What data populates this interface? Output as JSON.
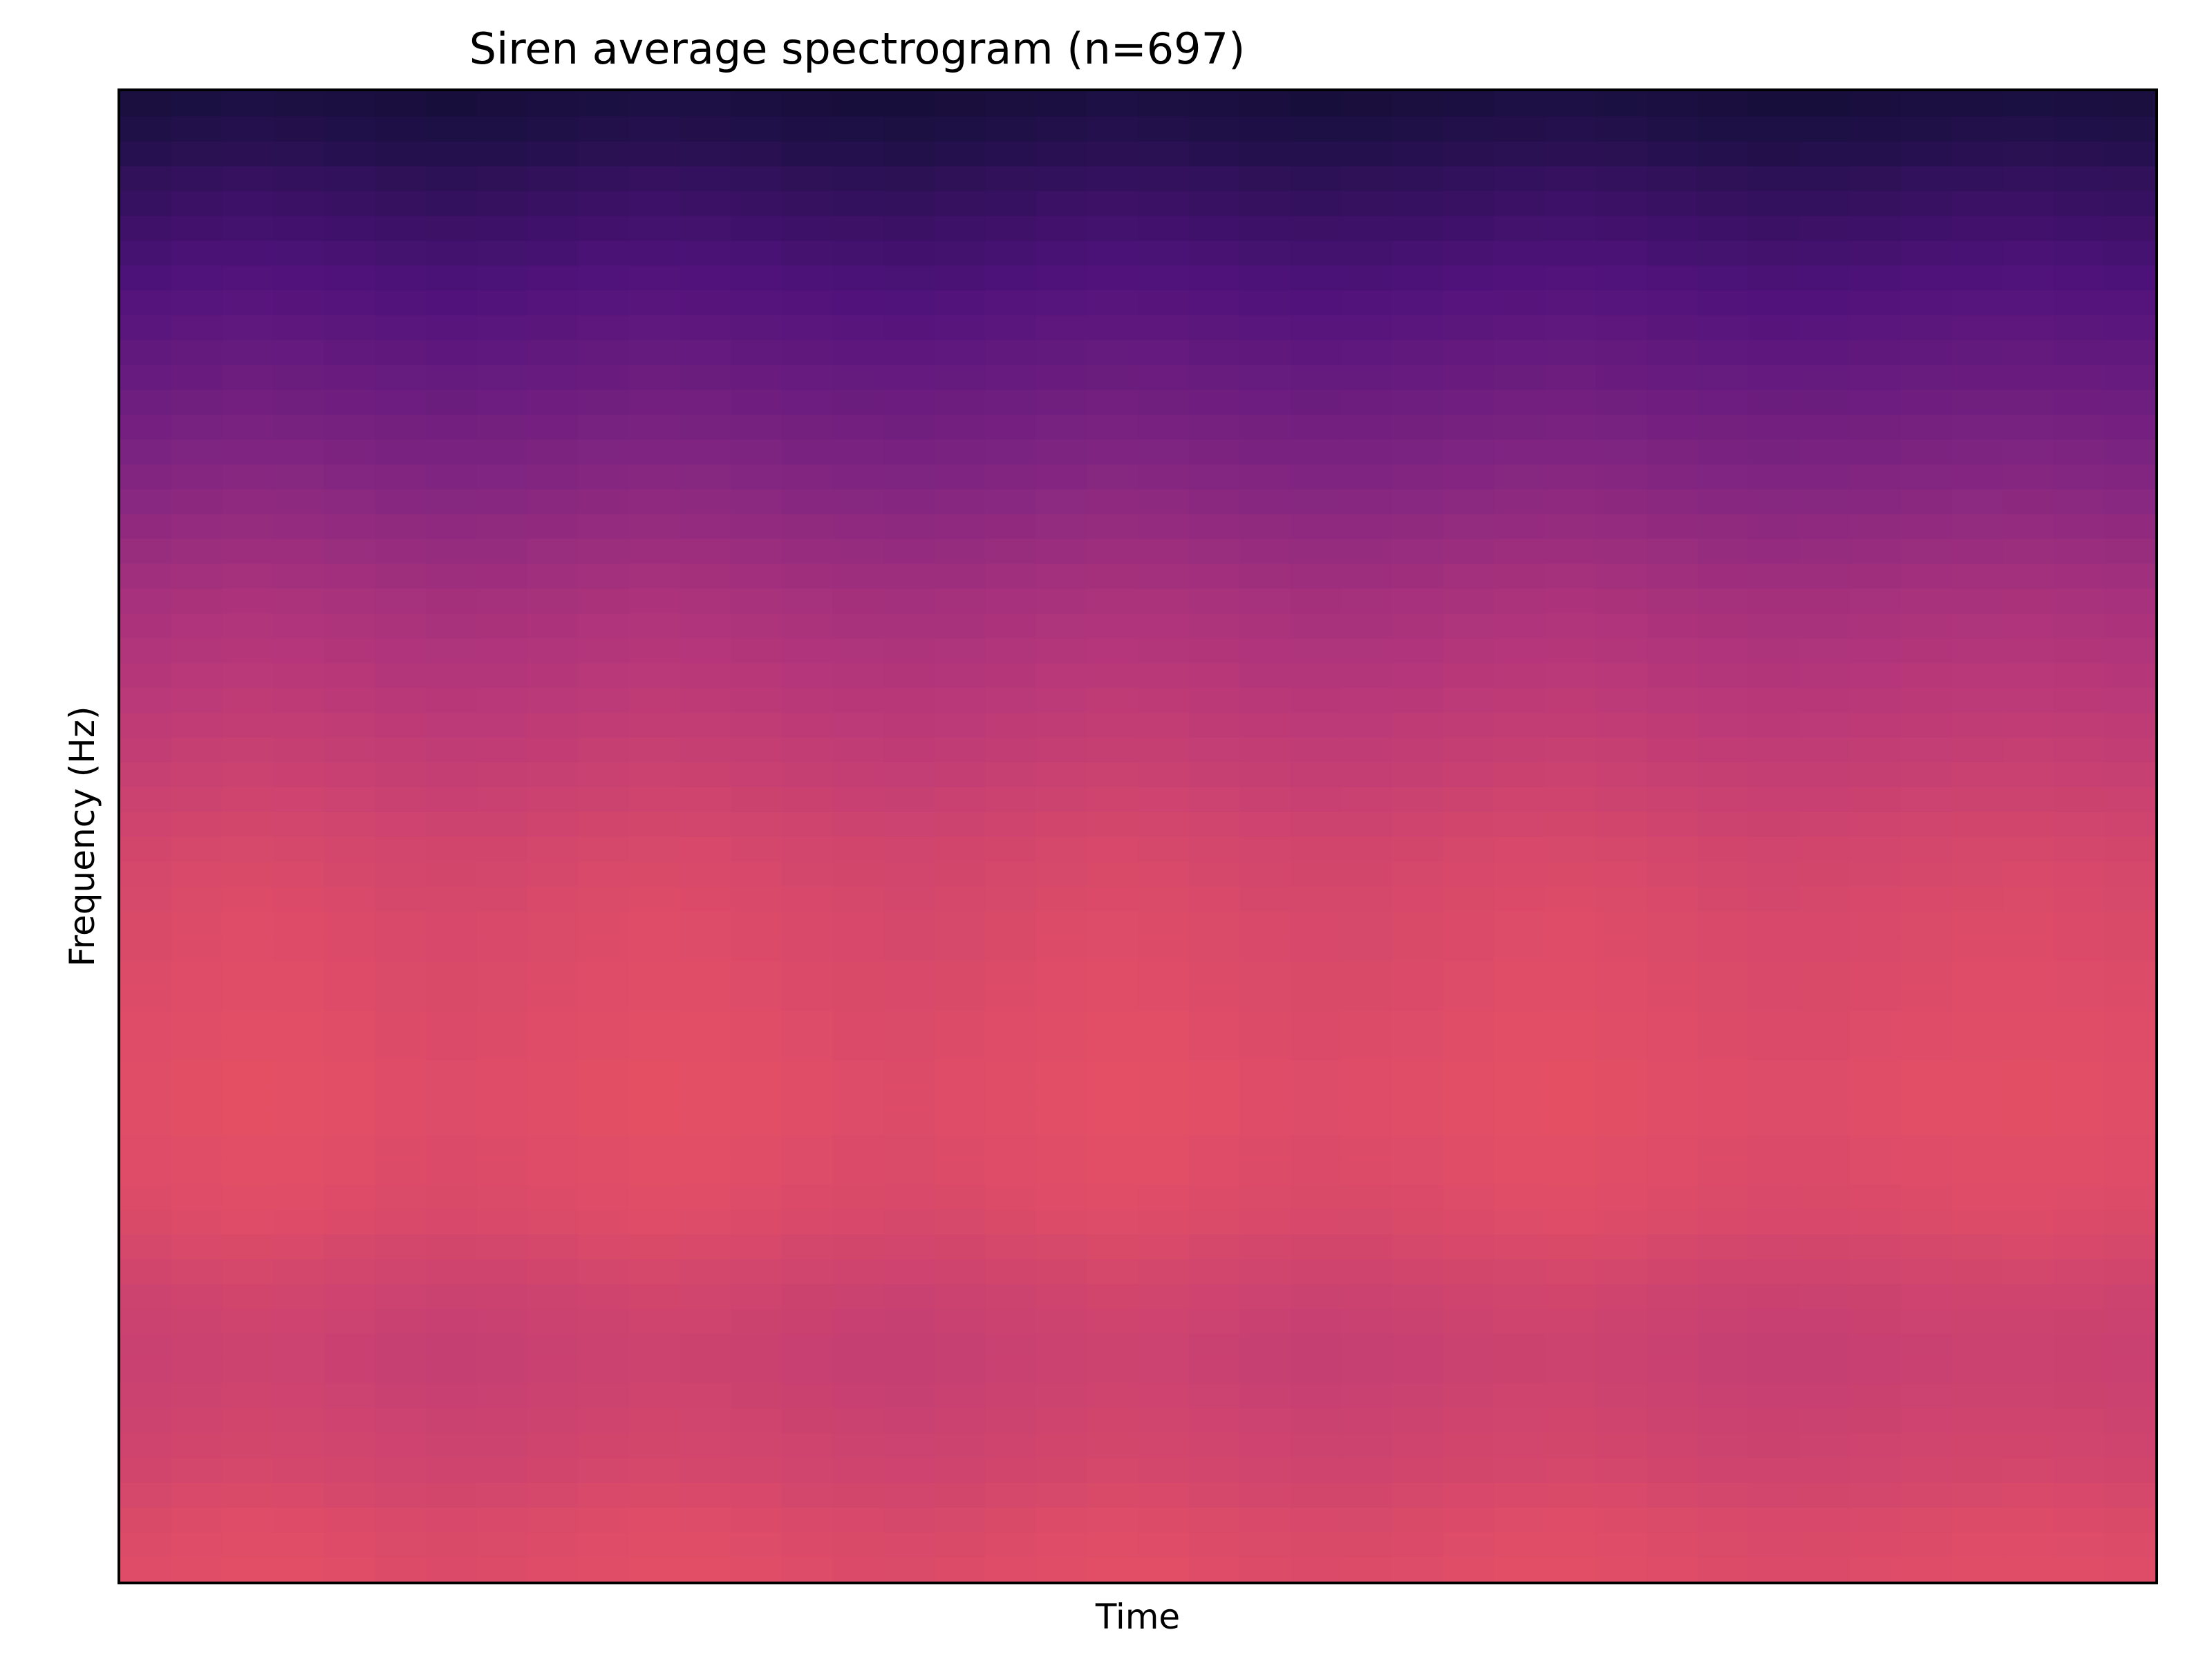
{
  "chart_data": {
    "type": "heatmap",
    "title": "Siren average spectrogram (n=697)",
    "xlabel": "Time",
    "ylabel": "Frequency (Hz)",
    "colormap": "magma",
    "x_ticks_visible": false,
    "y_ticks_visible": false,
    "grid": false,
    "legend": "none",
    "intensity_range": [
      0,
      1
    ],
    "row_intensity_low_to_high_freq": [
      0.86,
      0.85,
      0.84,
      0.82,
      0.8,
      0.79,
      0.78,
      0.77,
      0.76,
      0.76,
      0.77,
      0.78,
      0.8,
      0.82,
      0.84,
      0.85,
      0.86,
      0.86,
      0.87,
      0.87,
      0.87,
      0.86,
      0.86,
      0.85,
      0.85,
      0.84,
      0.84,
      0.83,
      0.82,
      0.81,
      0.79,
      0.77,
      0.75,
      0.73,
      0.71,
      0.69,
      0.67,
      0.65,
      0.63,
      0.61,
      0.58,
      0.55,
      0.52,
      0.49,
      0.46,
      0.43,
      0.4,
      0.37,
      0.34,
      0.31,
      0.28,
      0.25,
      0.22,
      0.19,
      0.16,
      0.13,
      0.1,
      0.06,
      0.03,
      0.0
    ],
    "column_variation": [
      0.0,
      0.012,
      0.02,
      0.015,
      0.005,
      -0.006,
      -0.012,
      -0.008,
      0.002,
      0.012,
      0.02,
      0.016,
      0.006,
      -0.004,
      -0.012,
      -0.016,
      -0.01,
      0.0,
      0.01,
      0.018,
      0.014,
      0.004,
      -0.006,
      -0.012,
      -0.01,
      -0.002,
      0.008,
      0.016,
      0.02,
      0.012,
      0.002,
      -0.008,
      -0.014,
      -0.012,
      -0.004,
      0.004,
      0.01,
      0.012,
      0.006,
      0.0
    ]
  }
}
